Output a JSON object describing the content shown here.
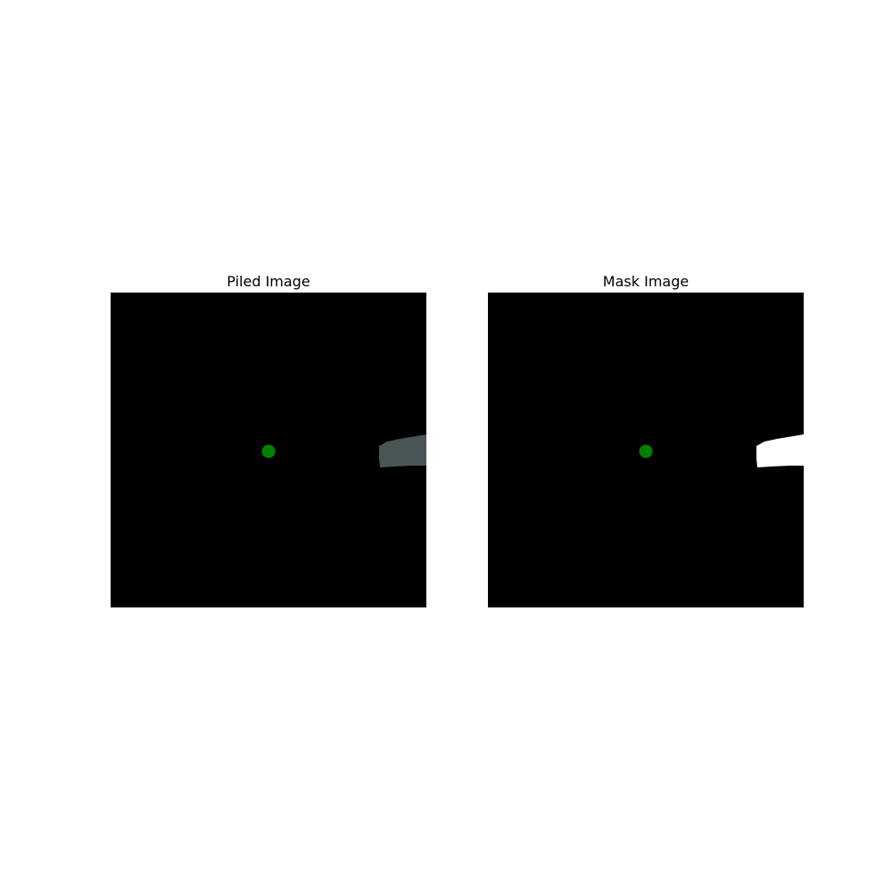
{
  "panels": [
    {
      "title": "Piled Image",
      "image": {
        "background": "#000000",
        "marker_color": "#008000",
        "object_color": "#4a5656"
      }
    },
    {
      "title": "Mask Image",
      "image": {
        "background": "#000000",
        "marker_color": "#008000",
        "object_color": "#ffffff"
      }
    }
  ]
}
